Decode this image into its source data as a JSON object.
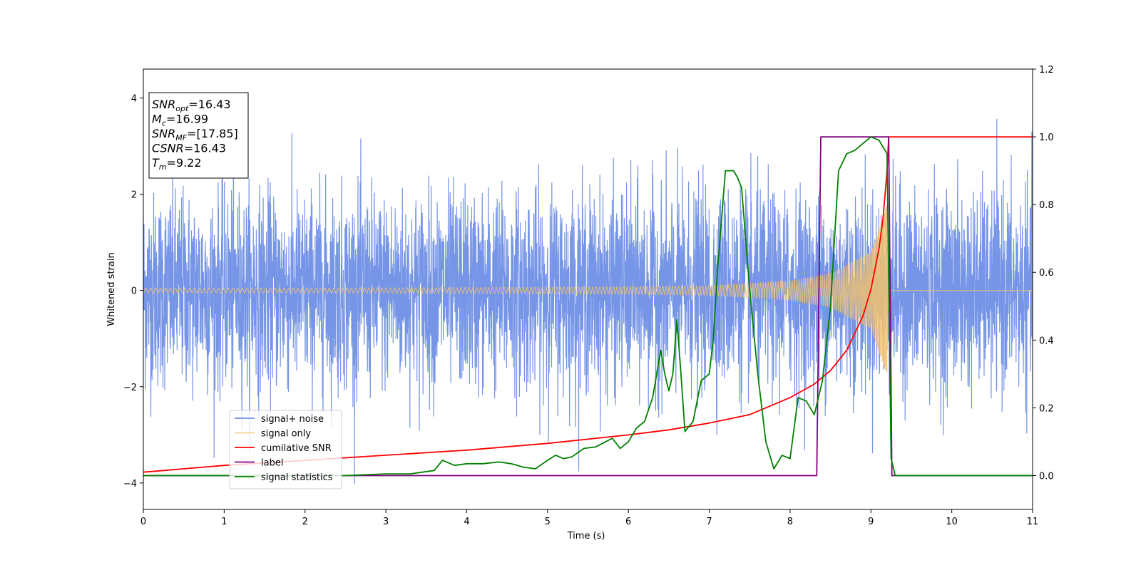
{
  "chart_data": {
    "type": "line",
    "xlabel": "Time (s)",
    "ylabel": "Whitened strain",
    "xlim": [
      0,
      11
    ],
    "ylim_left": [
      -4.55,
      4.6
    ],
    "ylim_right": [
      -0.1,
      1.2
    ],
    "x_ticks": [
      0,
      1,
      2,
      3,
      4,
      5,
      6,
      7,
      8,
      9,
      10,
      11
    ],
    "y_ticks_left": [
      -4,
      -2,
      0,
      2,
      4
    ],
    "y_ticks_right": [
      0.0,
      0.2,
      0.4,
      0.6,
      0.8,
      1.0,
      1.2
    ],
    "x_tick_labels": [
      "0",
      "1",
      "2",
      "3",
      "4",
      "5",
      "6",
      "7",
      "8",
      "9",
      "10",
      "11"
    ],
    "y_tick_labels_left": [
      "−4",
      "−2",
      "0",
      "2",
      "4"
    ],
    "y_tick_labels_right": [
      "0.0",
      "0.2",
      "0.4",
      "0.6",
      "0.8",
      "1.0",
      "1.2"
    ],
    "grid": false,
    "legend_position": "lower-left",
    "colors": {
      "noise": "#6f8fe6",
      "signal": "#f3c26f",
      "csnr": "#ff0000",
      "label": "#800080",
      "stat": "#008000"
    },
    "series": [
      {
        "name": "signal+ noise",
        "axis": "left",
        "description_values": {
          "std": 1.0,
          "x_start": 0,
          "x_end": 11,
          "envelope_approx": [
            -3.2,
            3.6
          ]
        }
      },
      {
        "name": "signal only",
        "axis": "left",
        "chirp_amplitude_points": {
          "x": [
            0,
            2,
            4,
            6,
            7,
            8,
            8.5,
            9.0,
            9.2,
            9.22,
            11
          ],
          "amplitude": [
            0.05,
            0.05,
            0.06,
            0.08,
            0.1,
            0.2,
            0.35,
            0.8,
            1.8,
            0,
            0
          ]
        }
      },
      {
        "name": "cumilative SNR",
        "axis": "right",
        "x": [
          0,
          1,
          2,
          3,
          4,
          5,
          6,
          6.5,
          7,
          7.5,
          8,
          8.3,
          8.5,
          8.7,
          8.9,
          9.0,
          9.1,
          9.15,
          9.2,
          9.22,
          9.25,
          11
        ],
        "y": [
          0.01,
          0.03,
          0.045,
          0.06,
          0.075,
          0.095,
          0.12,
          0.135,
          0.155,
          0.18,
          0.23,
          0.27,
          0.31,
          0.37,
          0.47,
          0.55,
          0.67,
          0.76,
          0.9,
          1.0,
          1.0,
          1.0
        ]
      },
      {
        "name": "label",
        "axis": "right",
        "x": [
          0,
          8.33,
          8.38,
          9.22,
          9.26,
          11
        ],
        "y": [
          0,
          0,
          1.0,
          1.0,
          0,
          0
        ]
      },
      {
        "name": "signal statistics",
        "axis": "right",
        "x": [
          0,
          0.5,
          1,
          1.5,
          2,
          2.5,
          3,
          3.3,
          3.6,
          3.7,
          3.85,
          4.0,
          4.2,
          4.4,
          4.55,
          4.7,
          4.85,
          5.0,
          5.1,
          5.2,
          5.3,
          5.45,
          5.6,
          5.8,
          5.9,
          6.0,
          6.1,
          6.2,
          6.3,
          6.4,
          6.45,
          6.5,
          6.55,
          6.6,
          6.65,
          6.7,
          6.8,
          6.9,
          7.0,
          7.05,
          7.1,
          7.2,
          7.3,
          7.35,
          7.4,
          7.5,
          7.6,
          7.7,
          7.8,
          7.9,
          8.0,
          8.1,
          8.2,
          8.3,
          8.4,
          8.5,
          8.6,
          8.7,
          8.8,
          8.9,
          9.0,
          9.1,
          9.2,
          9.25,
          9.3,
          9.5,
          11
        ],
        "y": [
          0.0,
          0.0,
          0.0,
          0.0,
          0.0,
          0.0,
          0.005,
          0.005,
          0.015,
          0.045,
          0.03,
          0.035,
          0.035,
          0.04,
          0.035,
          0.025,
          0.02,
          0.045,
          0.06,
          0.05,
          0.055,
          0.08,
          0.085,
          0.11,
          0.08,
          0.1,
          0.14,
          0.16,
          0.23,
          0.37,
          0.3,
          0.25,
          0.3,
          0.46,
          0.3,
          0.13,
          0.16,
          0.28,
          0.3,
          0.4,
          0.6,
          0.9,
          0.9,
          0.88,
          0.85,
          0.55,
          0.3,
          0.1,
          0.02,
          0.06,
          0.05,
          0.23,
          0.22,
          0.18,
          0.28,
          0.5,
          0.9,
          0.95,
          0.96,
          0.98,
          1.0,
          0.99,
          0.95,
          0.05,
          0.0,
          0.0,
          0.0
        ]
      }
    ],
    "annotation_box": {
      "lines": [
        {
          "var": "SNR",
          "sub": "opt",
          "value": "=16.43"
        },
        {
          "var": "M",
          "sub": "c",
          "value": "=16.99"
        },
        {
          "var": "SNR",
          "sub": "MF",
          "value": "=[17.85]"
        },
        {
          "var": "CSNR",
          "sub": "",
          "value": "=16.43"
        },
        {
          "var": "T",
          "sub": "m",
          "value": "=9.22"
        }
      ]
    }
  }
}
